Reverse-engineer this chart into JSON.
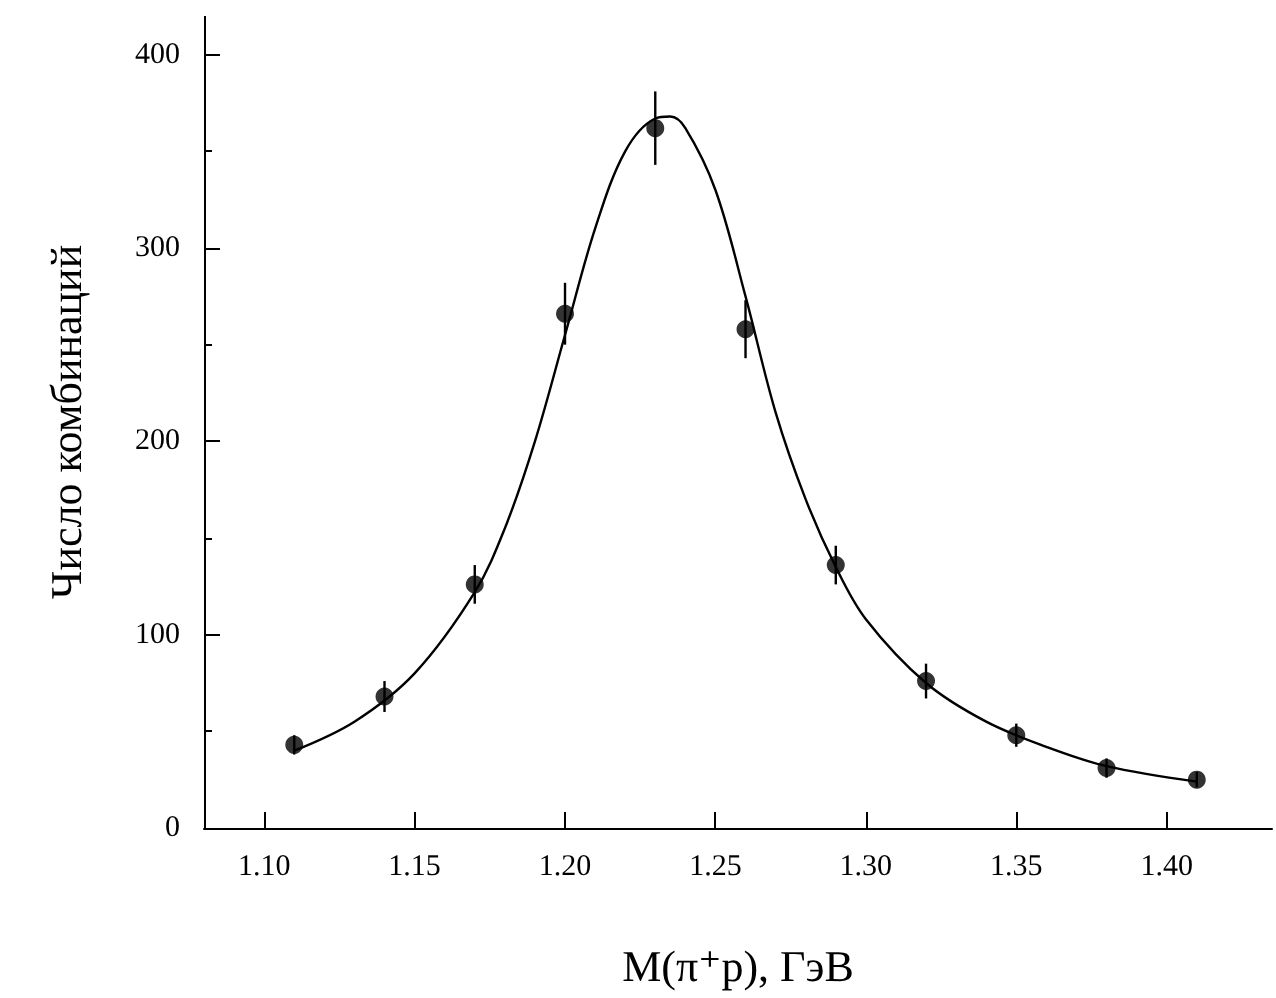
{
  "chart_data": {
    "type": "scatter",
    "xlabel": "M(π⁺p), ГэВ",
    "ylabel": "Число комбинаций",
    "xlim": [
      1.08,
      1.435
    ],
    "ylim": [
      0,
      420
    ],
    "xticks": [
      {
        "value": 1.1,
        "label": "1.10"
      },
      1.15,
      {
        "value": 1.2,
        "label": "1.20"
      },
      1.25,
      {
        "value": 1.3,
        "label": "1.30"
      },
      1.35,
      {
        "value": 1.4,
        "label": "1.40"
      }
    ],
    "yticks": [
      0,
      100,
      200,
      300,
      400
    ],
    "grid": false,
    "marker": "circle",
    "series": [
      {
        "color": "#000000",
        "x": [
          1.11,
          1.14,
          1.17,
          1.2,
          1.23,
          1.26,
          1.29,
          1.32,
          1.35,
          1.38,
          1.41
        ],
        "values": [
          43,
          68,
          126,
          266,
          362,
          258,
          136,
          76,
          48,
          31,
          25
        ],
        "errors": [
          5,
          8,
          10,
          16,
          19,
          15,
          10,
          9,
          6,
          5,
          4
        ]
      },
      {
        "type": "line",
        "color": "#000000",
        "marker": "none",
        "line_style": "solid",
        "x": [
          1.11,
          1.13,
          1.15,
          1.17,
          1.18,
          1.19,
          1.2,
          1.21,
          1.22,
          1.23,
          1.235,
          1.24,
          1.25,
          1.26,
          1.27,
          1.28,
          1.29,
          1.3,
          1.32,
          1.34,
          1.36,
          1.38,
          1.41
        ],
        "values": [
          40,
          55,
          80,
          122,
          155,
          200,
          255,
          310,
          350,
          367,
          368,
          362,
          330,
          275,
          215,
          170,
          135,
          108,
          75,
          55,
          42,
          32,
          24
        ]
      }
    ]
  }
}
